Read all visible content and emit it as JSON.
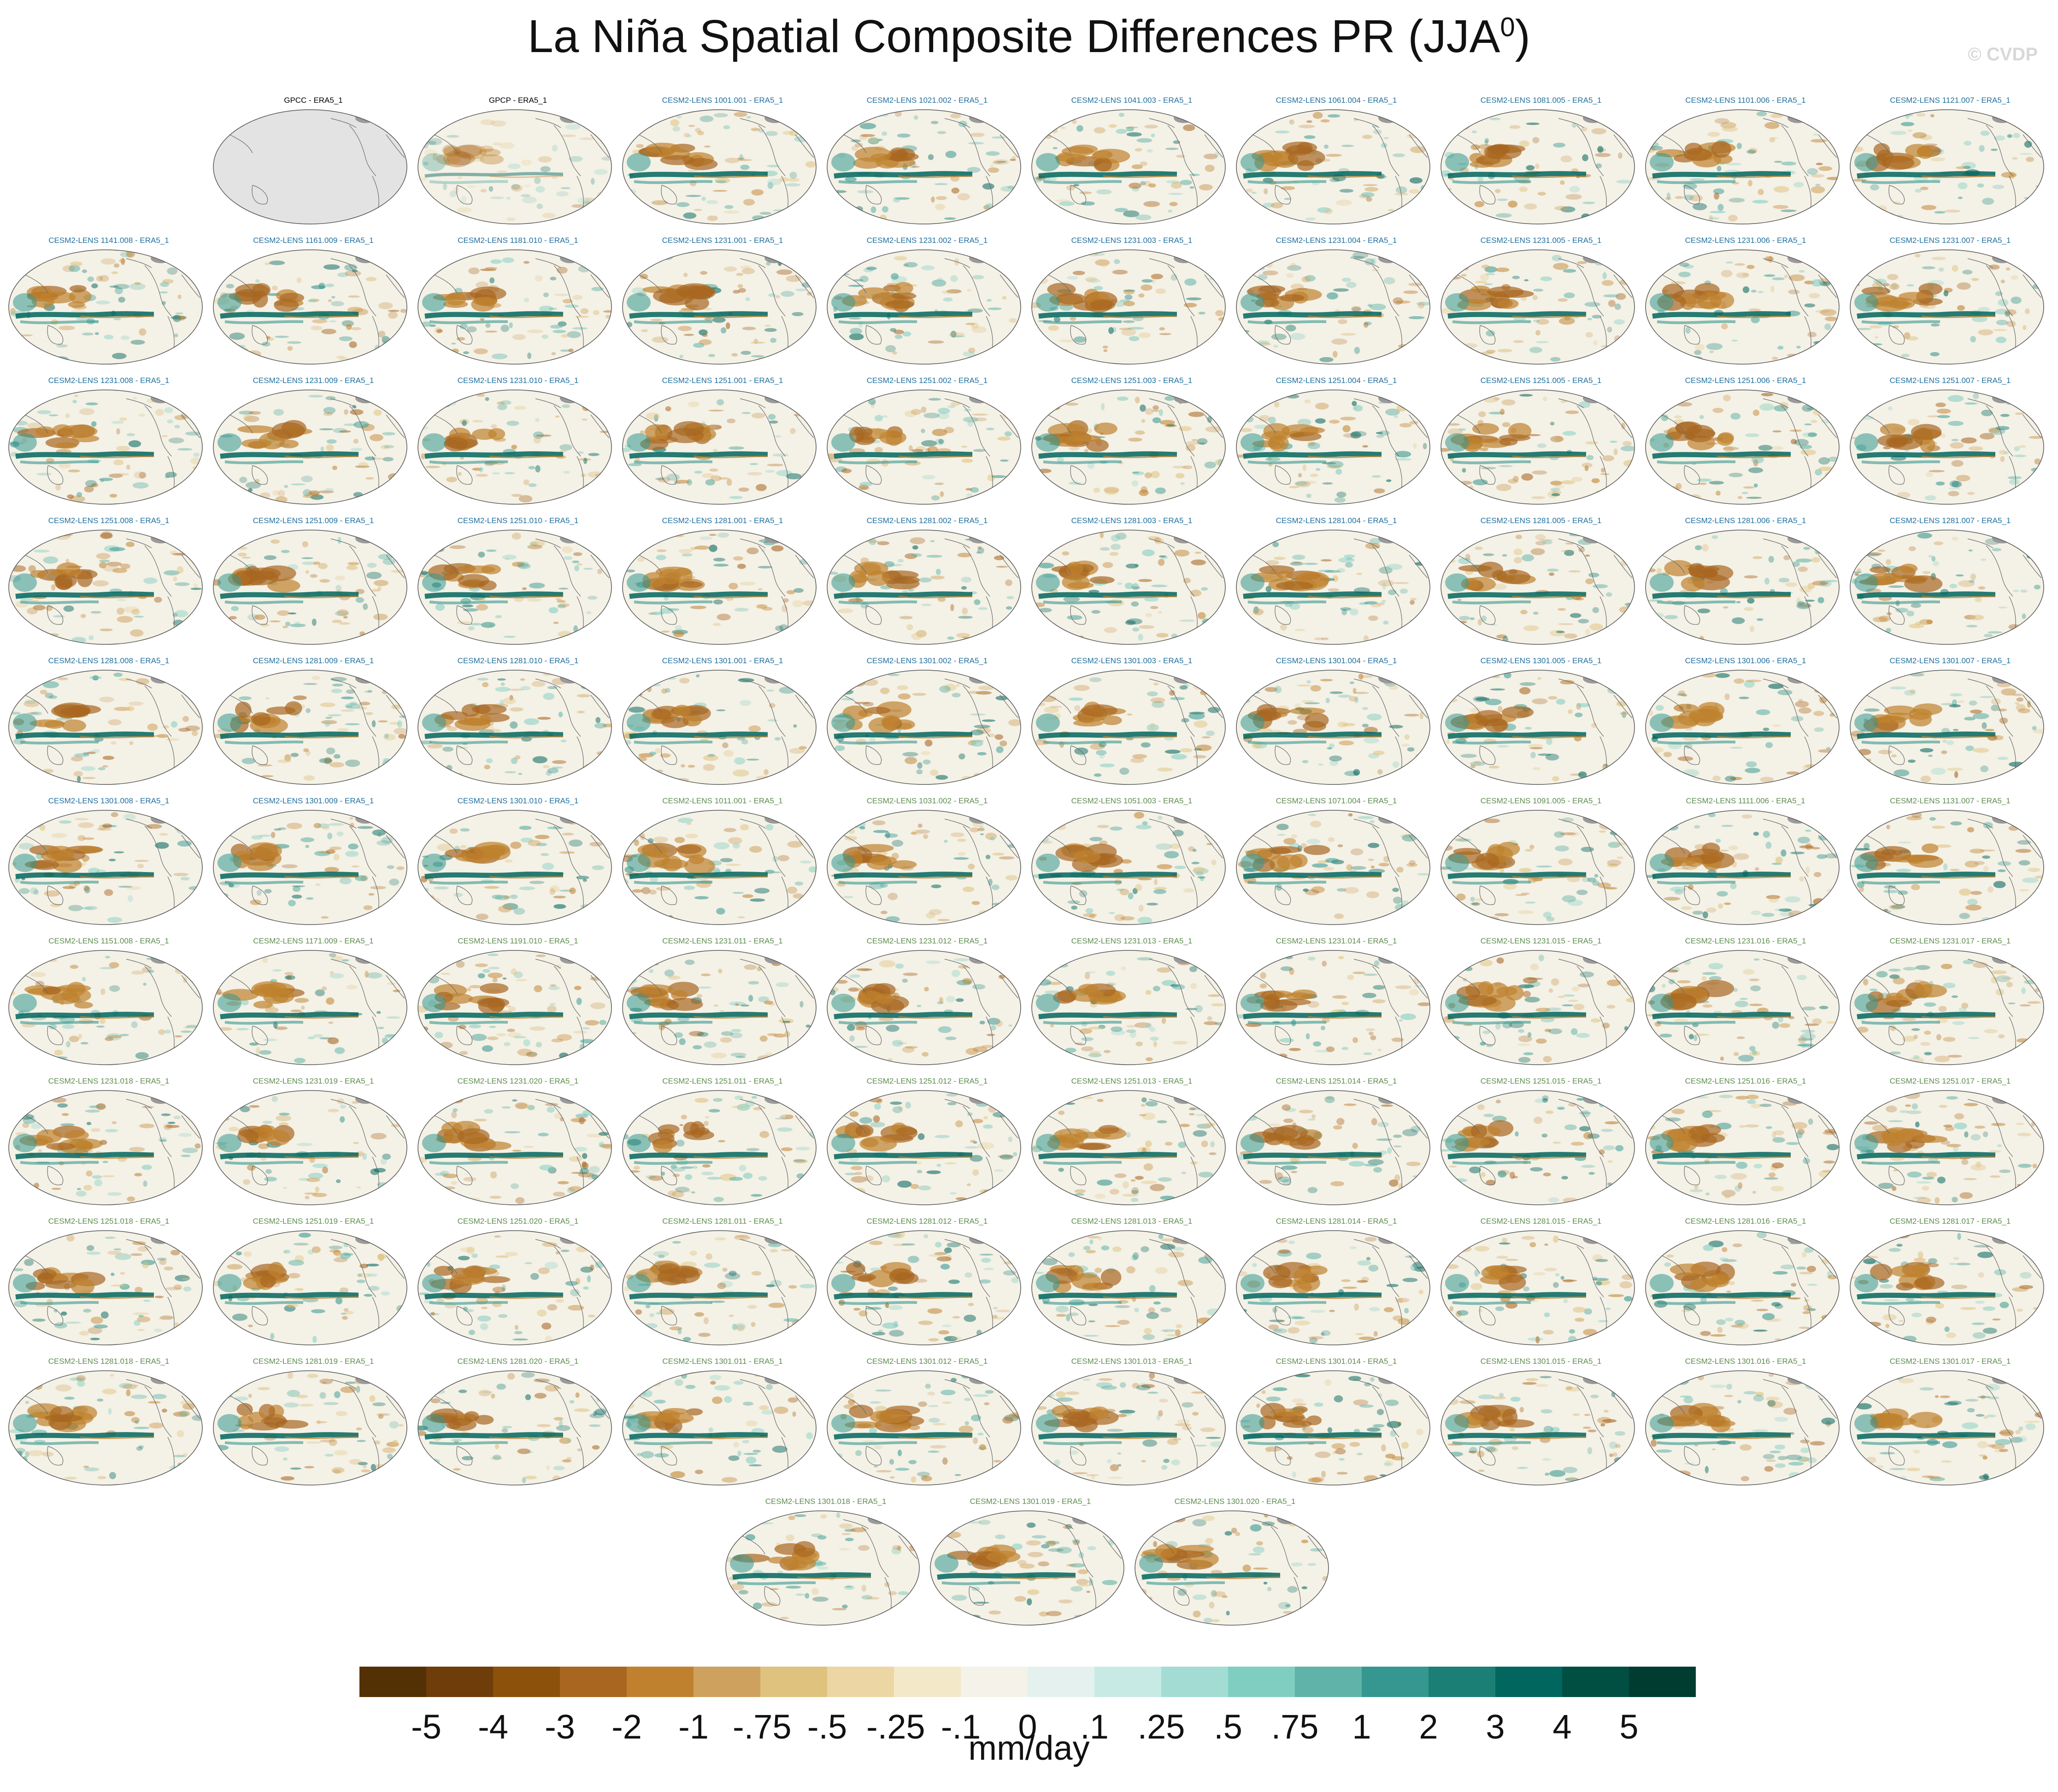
{
  "figure": {
    "title": "La Niña Spatial Composite Differences PR (JJA",
    "title_sup": "0",
    "title_close": ")",
    "watermark": "© CVDP"
  },
  "panels": [
    {
      "label": "GPCC - ERA5_1",
      "color": "#000000",
      "style": "blank"
    },
    {
      "label": "GPCP - ERA5_1",
      "color": "#000000",
      "style": "obs"
    },
    {
      "label": "CESM2-LENS 1001.001 - ERA5_1",
      "color": "#1f6f9e",
      "style": "model"
    },
    {
      "label": "CESM2-LENS 1021.002 - ERA5_1",
      "color": "#1f6f9e",
      "style": "model"
    },
    {
      "label": "CESM2-LENS 1041.003 - ERA5_1",
      "color": "#1f6f9e",
      "style": "model"
    },
    {
      "label": "CESM2-LENS 1061.004 - ERA5_1",
      "color": "#1f6f9e",
      "style": "model"
    },
    {
      "label": "CESM2-LENS 1081.005 - ERA5_1",
      "color": "#1f6f9e",
      "style": "model"
    },
    {
      "label": "CESM2-LENS 1101.006 - ERA5_1",
      "color": "#1f6f9e",
      "style": "model"
    },
    {
      "label": "CESM2-LENS 1121.007 - ERA5_1",
      "color": "#1f6f9e",
      "style": "model"
    },
    {
      "label": "CESM2-LENS 1141.008 - ERA5_1",
      "color": "#1f6f9e",
      "style": "model"
    },
    {
      "label": "CESM2-LENS 1161.009 - ERA5_1",
      "color": "#1f6f9e",
      "style": "model"
    },
    {
      "label": "CESM2-LENS 1181.010 - ERA5_1",
      "color": "#1f6f9e",
      "style": "model"
    },
    {
      "label": "CESM2-LENS 1231.001 - ERA5_1",
      "color": "#1f6f9e",
      "style": "model"
    },
    {
      "label": "CESM2-LENS 1231.002 - ERA5_1",
      "color": "#1f6f9e",
      "style": "model"
    },
    {
      "label": "CESM2-LENS 1231.003 - ERA5_1",
      "color": "#1f6f9e",
      "style": "model"
    },
    {
      "label": "CESM2-LENS 1231.004 - ERA5_1",
      "color": "#1f6f9e",
      "style": "model"
    },
    {
      "label": "CESM2-LENS 1231.005 - ERA5_1",
      "color": "#1f6f9e",
      "style": "model"
    },
    {
      "label": "CESM2-LENS 1231.006 - ERA5_1",
      "color": "#1f6f9e",
      "style": "model"
    },
    {
      "label": "CESM2-LENS 1231.007 - ERA5_1",
      "color": "#1f6f9e",
      "style": "model"
    },
    {
      "label": "CESM2-LENS 1231.008 - ERA5_1",
      "color": "#1f6f9e",
      "style": "model"
    },
    {
      "label": "CESM2-LENS 1231.009 - ERA5_1",
      "color": "#1f6f9e",
      "style": "model"
    },
    {
      "label": "CESM2-LENS 1231.010 - ERA5_1",
      "color": "#1f6f9e",
      "style": "model"
    },
    {
      "label": "CESM2-LENS 1251.001 - ERA5_1",
      "color": "#1f6f9e",
      "style": "model"
    },
    {
      "label": "CESM2-LENS 1251.002 - ERA5_1",
      "color": "#1f6f9e",
      "style": "model"
    },
    {
      "label": "CESM2-LENS 1251.003 - ERA5_1",
      "color": "#1f6f9e",
      "style": "model"
    },
    {
      "label": "CESM2-LENS 1251.004 - ERA5_1",
      "color": "#1f6f9e",
      "style": "model"
    },
    {
      "label": "CESM2-LENS 1251.005 - ERA5_1",
      "color": "#1f6f9e",
      "style": "model"
    },
    {
      "label": "CESM2-LENS 1251.006 - ERA5_1",
      "color": "#1f6f9e",
      "style": "model"
    },
    {
      "label": "CESM2-LENS 1251.007 - ERA5_1",
      "color": "#1f6f9e",
      "style": "model"
    },
    {
      "label": "CESM2-LENS 1251.008 - ERA5_1",
      "color": "#1f6f9e",
      "style": "model"
    },
    {
      "label": "CESM2-LENS 1251.009 - ERA5_1",
      "color": "#1f6f9e",
      "style": "model"
    },
    {
      "label": "CESM2-LENS 1251.010 - ERA5_1",
      "color": "#1f6f9e",
      "style": "model"
    },
    {
      "label": "CESM2-LENS 1281.001 - ERA5_1",
      "color": "#1f6f9e",
      "style": "model"
    },
    {
      "label": "CESM2-LENS 1281.002 - ERA5_1",
      "color": "#1f6f9e",
      "style": "model"
    },
    {
      "label": "CESM2-LENS 1281.003 - ERA5_1",
      "color": "#1f6f9e",
      "style": "model"
    },
    {
      "label": "CESM2-LENS 1281.004 - ERA5_1",
      "color": "#1f6f9e",
      "style": "model"
    },
    {
      "label": "CESM2-LENS 1281.005 - ERA5_1",
      "color": "#1f6f9e",
      "style": "model"
    },
    {
      "label": "CESM2-LENS 1281.006 - ERA5_1",
      "color": "#1f6f9e",
      "style": "model"
    },
    {
      "label": "CESM2-LENS 1281.007 - ERA5_1",
      "color": "#1f6f9e",
      "style": "model"
    },
    {
      "label": "CESM2-LENS 1281.008 - ERA5_1",
      "color": "#1f6f9e",
      "style": "model"
    },
    {
      "label": "CESM2-LENS 1281.009 - ERA5_1",
      "color": "#1f6f9e",
      "style": "model"
    },
    {
      "label": "CESM2-LENS 1281.010 - ERA5_1",
      "color": "#1f6f9e",
      "style": "model"
    },
    {
      "label": "CESM2-LENS 1301.001 - ERA5_1",
      "color": "#1f6f9e",
      "style": "model"
    },
    {
      "label": "CESM2-LENS 1301.002 - ERA5_1",
      "color": "#1f6f9e",
      "style": "model"
    },
    {
      "label": "CESM2-LENS 1301.003 - ERA5_1",
      "color": "#1f6f9e",
      "style": "model"
    },
    {
      "label": "CESM2-LENS 1301.004 - ERA5_1",
      "color": "#1f6f9e",
      "style": "model"
    },
    {
      "label": "CESM2-LENS 1301.005 - ERA5_1",
      "color": "#1f6f9e",
      "style": "model"
    },
    {
      "label": "CESM2-LENS 1301.006 - ERA5_1",
      "color": "#1f6f9e",
      "style": "model"
    },
    {
      "label": "CESM2-LENS 1301.007 - ERA5_1",
      "color": "#1f6f9e",
      "style": "model"
    },
    {
      "label": "CESM2-LENS 1301.008 - ERA5_1",
      "color": "#1f6f9e",
      "style": "model"
    },
    {
      "label": "CESM2-LENS 1301.009 - ERA5_1",
      "color": "#1f6f9e",
      "style": "model"
    },
    {
      "label": "CESM2-LENS 1301.010 - ERA5_1",
      "color": "#1f6f9e",
      "style": "model"
    },
    {
      "label": "CESM2-LENS 1011.001 - ERA5_1",
      "color": "#5e8c4e",
      "style": "model"
    },
    {
      "label": "CESM2-LENS 1031.002 - ERA5_1",
      "color": "#5e8c4e",
      "style": "model"
    },
    {
      "label": "CESM2-LENS 1051.003 - ERA5_1",
      "color": "#5e8c4e",
      "style": "model"
    },
    {
      "label": "CESM2-LENS 1071.004 - ERA5_1",
      "color": "#5e8c4e",
      "style": "model"
    },
    {
      "label": "CESM2-LENS 1091.005 - ERA5_1",
      "color": "#5e8c4e",
      "style": "model"
    },
    {
      "label": "CESM2-LENS 1111.006 - ERA5_1",
      "color": "#5e8c4e",
      "style": "model"
    },
    {
      "label": "CESM2-LENS 1131.007 - ERA5_1",
      "color": "#5e8c4e",
      "style": "model"
    },
    {
      "label": "CESM2-LENS 1151.008 - ERA5_1",
      "color": "#5e8c4e",
      "style": "model"
    },
    {
      "label": "CESM2-LENS 1171.009 - ERA5_1",
      "color": "#5e8c4e",
      "style": "model"
    },
    {
      "label": "CESM2-LENS 1191.010 - ERA5_1",
      "color": "#5e8c4e",
      "style": "model"
    },
    {
      "label": "CESM2-LENS 1231.011 - ERA5_1",
      "color": "#5e8c4e",
      "style": "model"
    },
    {
      "label": "CESM2-LENS 1231.012 - ERA5_1",
      "color": "#5e8c4e",
      "style": "model"
    },
    {
      "label": "CESM2-LENS 1231.013 - ERA5_1",
      "color": "#5e8c4e",
      "style": "model"
    },
    {
      "label": "CESM2-LENS 1231.014 - ERA5_1",
      "color": "#5e8c4e",
      "style": "model"
    },
    {
      "label": "CESM2-LENS 1231.015 - ERA5_1",
      "color": "#5e8c4e",
      "style": "model"
    },
    {
      "label": "CESM2-LENS 1231.016 - ERA5_1",
      "color": "#5e8c4e",
      "style": "model"
    },
    {
      "label": "CESM2-LENS 1231.017 - ERA5_1",
      "color": "#5e8c4e",
      "style": "model"
    },
    {
      "label": "CESM2-LENS 1231.018 - ERA5_1",
      "color": "#5e8c4e",
      "style": "model"
    },
    {
      "label": "CESM2-LENS 1231.019 - ERA5_1",
      "color": "#5e8c4e",
      "style": "model"
    },
    {
      "label": "CESM2-LENS 1231.020 - ERA5_1",
      "color": "#5e8c4e",
      "style": "model"
    },
    {
      "label": "CESM2-LENS 1251.011 - ERA5_1",
      "color": "#5e8c4e",
      "style": "model"
    },
    {
      "label": "CESM2-LENS 1251.012 - ERA5_1",
      "color": "#5e8c4e",
      "style": "model"
    },
    {
      "label": "CESM2-LENS 1251.013 - ERA5_1",
      "color": "#5e8c4e",
      "style": "model"
    },
    {
      "label": "CESM2-LENS 1251.014 - ERA5_1",
      "color": "#5e8c4e",
      "style": "model"
    },
    {
      "label": "CESM2-LENS 1251.015 - ERA5_1",
      "color": "#5e8c4e",
      "style": "model"
    },
    {
      "label": "CESM2-LENS 1251.016 - ERA5_1",
      "color": "#5e8c4e",
      "style": "model"
    },
    {
      "label": "CESM2-LENS 1251.017 - ERA5_1",
      "color": "#5e8c4e",
      "style": "model"
    },
    {
      "label": "CESM2-LENS 1251.018 - ERA5_1",
      "color": "#5e8c4e",
      "style": "model"
    },
    {
      "label": "CESM2-LENS 1251.019 - ERA5_1",
      "color": "#5e8c4e",
      "style": "model"
    },
    {
      "label": "CESM2-LENS 1251.020 - ERA5_1",
      "color": "#5e8c4e",
      "style": "model"
    },
    {
      "label": "CESM2-LENS 1281.011 - ERA5_1",
      "color": "#5e8c4e",
      "style": "model"
    },
    {
      "label": "CESM2-LENS 1281.012 - ERA5_1",
      "color": "#5e8c4e",
      "style": "model"
    },
    {
      "label": "CESM2-LENS 1281.013 - ERA5_1",
      "color": "#5e8c4e",
      "style": "model"
    },
    {
      "label": "CESM2-LENS 1281.014 - ERA5_1",
      "color": "#5e8c4e",
      "style": "model"
    },
    {
      "label": "CESM2-LENS 1281.015 - ERA5_1",
      "color": "#5e8c4e",
      "style": "model"
    },
    {
      "label": "CESM2-LENS 1281.016 - ERA5_1",
      "color": "#5e8c4e",
      "style": "model"
    },
    {
      "label": "CESM2-LENS 1281.017 - ERA5_1",
      "color": "#5e8c4e",
      "style": "model"
    },
    {
      "label": "CESM2-LENS 1281.018 - ERA5_1",
      "color": "#5e8c4e",
      "style": "model"
    },
    {
      "label": "CESM2-LENS 1281.019 - ERA5_1",
      "color": "#5e8c4e",
      "style": "model"
    },
    {
      "label": "CESM2-LENS 1281.020 - ERA5_1",
      "color": "#5e8c4e",
      "style": "model"
    },
    {
      "label": "CESM2-LENS 1301.011 - ERA5_1",
      "color": "#5e8c4e",
      "style": "model"
    },
    {
      "label": "CESM2-LENS 1301.012 - ERA5_1",
      "color": "#5e8c4e",
      "style": "model"
    },
    {
      "label": "CESM2-LENS 1301.013 - ERA5_1",
      "color": "#5e8c4e",
      "style": "model"
    },
    {
      "label": "CESM2-LENS 1301.014 - ERA5_1",
      "color": "#5e8c4e",
      "style": "model"
    },
    {
      "label": "CESM2-LENS 1301.015 - ERA5_1",
      "color": "#5e8c4e",
      "style": "model"
    },
    {
      "label": "CESM2-LENS 1301.016 - ERA5_1",
      "color": "#5e8c4e",
      "style": "model"
    },
    {
      "label": "CESM2-LENS 1301.017 - ERA5_1",
      "color": "#5e8c4e",
      "style": "model"
    },
    {
      "label": "CESM2-LENS 1301.018 - ERA5_1",
      "color": "#5e8c4e",
      "style": "model"
    },
    {
      "label": "CESM2-LENS 1301.019 - ERA5_1",
      "color": "#5e8c4e",
      "style": "model"
    },
    {
      "label": "CESM2-LENS 1301.020 - ERA5_1",
      "color": "#5e8c4e",
      "style": "model"
    }
  ],
  "colorbar": {
    "colors": [
      "#543005",
      "#6e3d0a",
      "#8c510a",
      "#a86621",
      "#bf812d",
      "#cfa15e",
      "#dfc27d",
      "#ebd6a4",
      "#f3e8c8",
      "#f5f2ea",
      "#e4f1ef",
      "#c7eae5",
      "#a3dcd3",
      "#80cdc1",
      "#5fb3a8",
      "#35978f",
      "#1b7f76",
      "#01665e",
      "#014e43",
      "#003c30"
    ],
    "ticks": [
      "-5",
      "-4",
      "-3",
      "-2",
      "-1",
      "-.75",
      "-.5",
      "-.25",
      "-.1",
      "0",
      ".1",
      ".25",
      ".5",
      ".75",
      "1",
      "2",
      "3",
      "4",
      "5"
    ],
    "units": "mm/day"
  }
}
